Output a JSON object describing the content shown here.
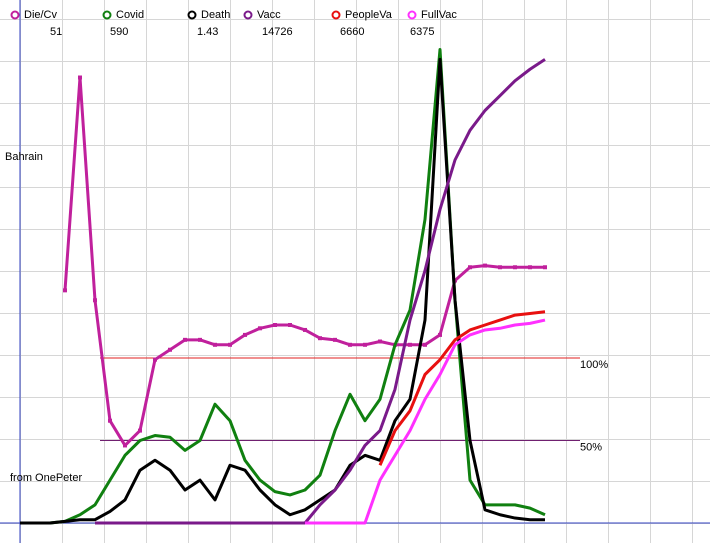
{
  "chart_data": {
    "type": "line",
    "ylim": [
      0,
      300
    ],
    "annotations": [
      "Bahrain",
      "from OnePeter"
    ],
    "reference_lines": [
      {
        "value": 100,
        "label": "100%",
        "color": "#e02020"
      },
      {
        "value": 50,
        "label": "50%",
        "color": "#702070"
      }
    ],
    "series": [
      {
        "name": "Die/Cv",
        "legend_value": 51,
        "color": "#c0209c",
        "markers": true,
        "values": [
          null,
          null,
          null,
          141,
          270,
          135,
          62,
          47,
          56,
          99,
          105,
          111,
          111,
          108,
          108,
          114,
          118,
          120,
          120,
          117,
          112,
          111,
          108,
          108,
          110,
          108,
          108,
          108,
          114,
          147,
          155,
          156,
          155,
          155,
          155,
          155
        ]
      },
      {
        "name": "Covid",
        "legend_value": 590,
        "color": "#108010",
        "markers": false,
        "values": [
          0,
          0,
          0,
          1,
          5,
          11,
          26,
          41,
          50,
          53,
          52,
          44,
          50,
          72,
          62,
          38,
          26,
          19,
          17,
          20,
          29,
          56,
          78,
          62,
          75,
          108,
          129,
          184,
          287,
          135,
          26,
          11,
          11,
          11,
          9,
          5
        ]
      },
      {
        "name": "Death",
        "legend_value": 1.43,
        "color": "#000000",
        "markers": false,
        "values": [
          0,
          0,
          0,
          1,
          2,
          2,
          7,
          14,
          32,
          38,
          32,
          20,
          26,
          14,
          35,
          32,
          20,
          11,
          5,
          8,
          14,
          20,
          35,
          41,
          38,
          62,
          75,
          123,
          281,
          135,
          50,
          8,
          5,
          3,
          2,
          2
        ]
      },
      {
        "name": "Vacc",
        "legend_value": 14726,
        "color": "#7a1a8a",
        "markers": false,
        "values": [
          null,
          null,
          null,
          null,
          null,
          0,
          0,
          0,
          0,
          0,
          0,
          0,
          0,
          0,
          0,
          0,
          0,
          0,
          0,
          0,
          11,
          20,
          32,
          47,
          56,
          81,
          123,
          153,
          190,
          220,
          238,
          250,
          259,
          268,
          275,
          281
        ]
      },
      {
        "name": "PeopleVa",
        "legend_value": 6660,
        "color": "#e81010",
        "markers": false,
        "values": [
          null,
          null,
          null,
          null,
          null,
          null,
          null,
          null,
          null,
          null,
          null,
          null,
          null,
          null,
          null,
          null,
          null,
          null,
          null,
          null,
          null,
          null,
          null,
          null,
          35,
          56,
          68,
          90,
          99,
          111,
          117,
          120,
          123,
          126,
          127,
          128
        ]
      },
      {
        "name": "FullVac",
        "legend_value": 6375,
        "color": "#ff30ff",
        "markers": false,
        "values": [
          null,
          null,
          null,
          null,
          null,
          null,
          null,
          null,
          null,
          null,
          null,
          null,
          null,
          null,
          null,
          null,
          null,
          null,
          null,
          0,
          0,
          0,
          0,
          0,
          26,
          41,
          56,
          75,
          90,
          108,
          114,
          117,
          118,
          120,
          121,
          123
        ]
      }
    ]
  }
}
